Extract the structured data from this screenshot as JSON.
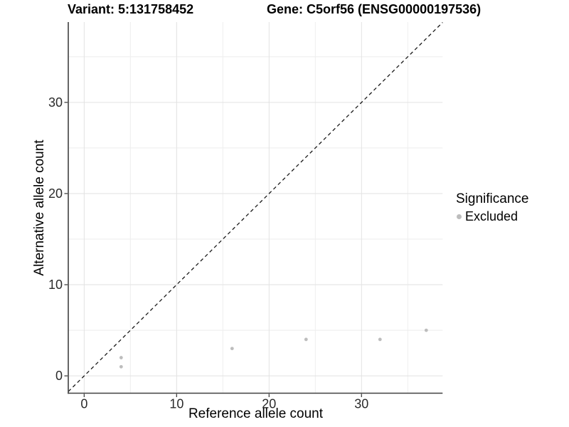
{
  "chart_data": {
    "type": "scatter",
    "title_variant": "Variant: 5:131758452",
    "title_gene": "Gene: C5orf56 (ENSG00000197536)",
    "xlabel": "Reference allele count",
    "ylabel": "Alternative allele count",
    "xlim": [
      -1.72,
      38.77
    ],
    "ylim": [
      -1.9,
      38.81
    ],
    "x_ticks": [
      0,
      10,
      20,
      30
    ],
    "y_ticks": [
      0,
      10,
      20,
      30
    ],
    "x_minor_breaks": [
      5,
      15,
      25,
      35
    ],
    "y_minor_breaks": [
      5,
      15,
      25,
      35
    ],
    "grid": "major+minor",
    "legend": {
      "position": "right",
      "title": "Significance",
      "items": [
        {
          "label": "Excluded",
          "color": "#bdbdbd",
          "marker": "circle"
        }
      ]
    },
    "series": [
      {
        "name": "Excluded",
        "color": "#bdbdbd",
        "marker": "circle",
        "points": [
          [
            4,
            1
          ],
          [
            4,
            2
          ],
          [
            16,
            3
          ],
          [
            24,
            4
          ],
          [
            32,
            4
          ],
          [
            37,
            5
          ]
        ]
      }
    ],
    "reference_line": {
      "kind": "identity y=x",
      "style": "dashed",
      "color": "#1a1a1a"
    }
  },
  "colors": {
    "background": "#ffffff",
    "axis_line": "#404040",
    "tick_label": "#2b2b2b",
    "grid_major": "#e2e2e2",
    "grid_minor": "#eeeeee"
  }
}
